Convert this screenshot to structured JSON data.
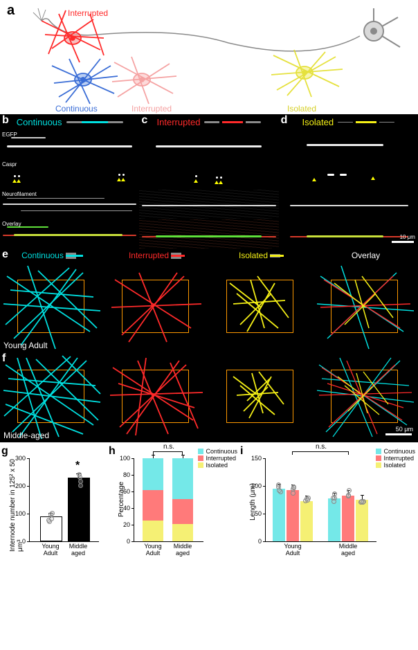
{
  "colors": {
    "continuous": "#00e0e0",
    "interrupted": "#ff2a2a",
    "interrupted_soft": "#f5a2a2",
    "isolated": "#f5f016",
    "isolated_soft": "#f2ed7d",
    "gray": "#8a8a8a",
    "continuous_label": "#3a6dd6",
    "orange_box": "#ff9900",
    "black": "#000000",
    "white": "#ffffff",
    "overlay_neuro_red": "#d83a2a",
    "overlay_egfp_green": "#5fe03a"
  },
  "panel_a": {
    "label": "a",
    "cell_labels": {
      "interrupted": "Interrupted",
      "continuous": "Continuous",
      "interrupted2": "Interrupted",
      "isolated": "Isolated"
    }
  },
  "micro": {
    "b": {
      "label": "b",
      "title": "Continuous",
      "title_color": "#00e0e0"
    },
    "c": {
      "label": "c",
      "title": "Interrupted",
      "title_color": "#ff2a2a"
    },
    "d": {
      "label": "d",
      "title": "Isolated",
      "title_color": "#f5f016"
    },
    "rows": [
      "EGFP",
      "Caspr",
      "Neurofilament",
      "Overlay"
    ],
    "scalebar_label": "10 μm"
  },
  "trace": {
    "e": {
      "label": "e",
      "caption": "Young Adult"
    },
    "f": {
      "label": "f",
      "caption": "Middle-aged"
    },
    "headers": [
      "Continuous",
      "Interrupted",
      "Isolated",
      "Overlay"
    ],
    "header_colors": [
      "#00e0e0",
      "#ff2a2a",
      "#f5f016",
      "#ffffff"
    ],
    "scalebar_label": "50 μm"
  },
  "chart_g": {
    "label": "g",
    "ylabel": "Internode number in 125² x 50 μm³",
    "ymax": 300,
    "ytick_step": 100,
    "groups": [
      "Young\nAdult",
      "Middle\naged"
    ],
    "values": [
      85,
      225
    ],
    "errors": [
      15,
      18
    ],
    "bar_colors": [
      "#ffffff",
      "#000000"
    ],
    "bar_border": "#000000",
    "sig": "*",
    "points_young": [
      70,
      75,
      80,
      95,
      100
    ],
    "points_middle": [
      200,
      215,
      230,
      240
    ]
  },
  "chart_h": {
    "label": "h",
    "ylabel": "Percentage",
    "ymax": 100,
    "ytick_step": 20,
    "groups": [
      "Young\nAdult",
      "Middle\naged"
    ],
    "stacks": {
      "young": {
        "isolated": 25,
        "interrupted": 37,
        "continuous": 38
      },
      "middle": {
        "isolated": 21,
        "interrupted": 30,
        "continuous": 49
      }
    },
    "ns_label": "n.s.",
    "legend": [
      "Continuous",
      "Interrupted",
      "Isolated"
    ]
  },
  "chart_i": {
    "label": "i",
    "ylabel": "Length (μm)",
    "ymax": 150,
    "ytick_step": 50,
    "groups": [
      "Young\nAdult",
      "Middle\naged"
    ],
    "young": {
      "continuous": 95,
      "interrupted": 93,
      "isolated": 73
    },
    "middle": {
      "continuous": 78,
      "interrupted": 83,
      "isolated": 75
    },
    "err": 8,
    "ns_label": "n.s.",
    "legend": [
      "Continuous",
      "Interrupted",
      "Isolated"
    ]
  }
}
